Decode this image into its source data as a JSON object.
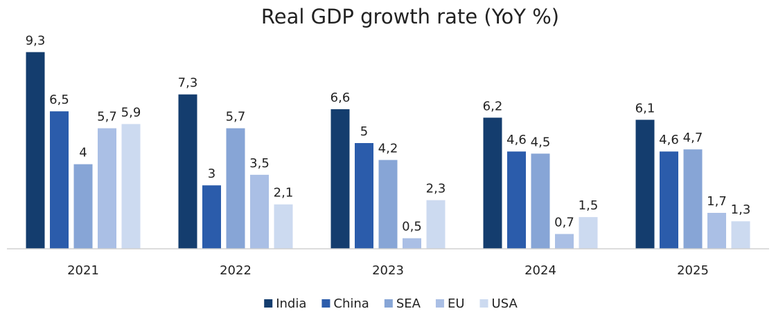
{
  "chart_data": {
    "type": "bar",
    "title": "Real GDP growth rate (YoY %)",
    "categories": [
      "2021",
      "2022",
      "2023",
      "2024",
      "2025"
    ],
    "ylim": [
      0,
      10
    ],
    "legend": "bottom",
    "series": [
      {
        "name": "India",
        "color": "#143d6e",
        "values": [
          9.3,
          7.3,
          6.6,
          6.2,
          6.1
        ],
        "value_labels": [
          "9,3",
          "7,3",
          "6,6",
          "6,2",
          "6,1"
        ]
      },
      {
        "name": "China",
        "color": "#2b5cab",
        "values": [
          6.5,
          3,
          5,
          4.6,
          4.6
        ],
        "value_labels": [
          "6,5",
          "3",
          "5",
          "4,6",
          "4,6"
        ]
      },
      {
        "name": "SEA",
        "color": "#87a5d6",
        "values": [
          4,
          5.7,
          4.2,
          4.5,
          4.7
        ],
        "value_labels": [
          "4",
          "5,7",
          "4,2",
          "4,5",
          "4,7"
        ]
      },
      {
        "name": "EU",
        "color": "#aabfe5",
        "values": [
          5.7,
          3.5,
          0.5,
          0.7,
          1.7
        ],
        "value_labels": [
          "5,7",
          "3,5",
          "0,5",
          "0,7",
          "1,7"
        ]
      },
      {
        "name": "USA",
        "color": "#ccdaf0",
        "values": [
          5.9,
          2.1,
          2.3,
          1.5,
          1.3
        ],
        "value_labels": [
          "5,9",
          "2,1",
          "2,3",
          "1,5",
          "1,3"
        ]
      }
    ]
  }
}
